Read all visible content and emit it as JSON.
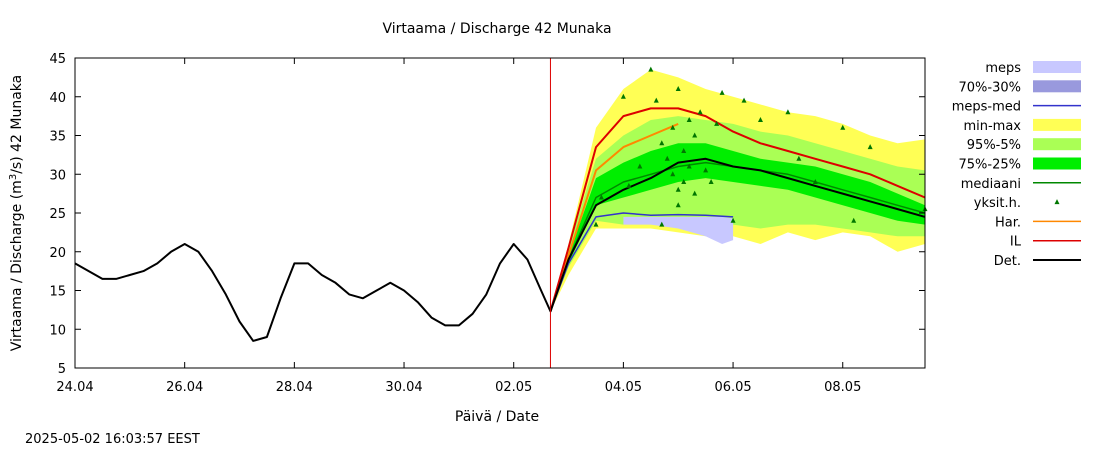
{
  "chart_data": {
    "type": "area",
    "title": "Virtaama / Discharge  42 Munaka",
    "xlabel": "Päivä / Date",
    "ylabel": "Virtaama / Discharge (m³/s)  42 Munaka",
    "ylabel_parts": [
      "Virtaama / Discharge (m",
      "3",
      "/s)  42 Munaka"
    ],
    "footer": "2025-05-02 16:03:57 EEST",
    "x_unit": "days since 24.04 00:00",
    "xlim": [
      0,
      15.5
    ],
    "ylim": [
      5,
      45
    ],
    "grid": false,
    "legend_position": "right",
    "x_ticks": [
      {
        "value": 0,
        "label": "24.04"
      },
      {
        "value": 2,
        "label": "26.04"
      },
      {
        "value": 4,
        "label": "28.04"
      },
      {
        "value": 6,
        "label": "30.04"
      },
      {
        "value": 8,
        "label": "02.05"
      },
      {
        "value": 10,
        "label": "04.05"
      },
      {
        "value": 12,
        "label": "06.05"
      },
      {
        "value": 14,
        "label": "08.05"
      }
    ],
    "y_ticks": [
      5,
      10,
      15,
      20,
      25,
      30,
      35,
      40,
      45
    ],
    "forecast_start": 8.67,
    "legend": [
      {
        "label": "meps",
        "kind": "box",
        "color": "#c8c8ff"
      },
      {
        "label": "70%-30%",
        "kind": "box",
        "color": "#9999dd"
      },
      {
        "label": "meps-med",
        "kind": "line",
        "color": "#3333cc"
      },
      {
        "label": "min-max",
        "kind": "box",
        "color": "#ffff55"
      },
      {
        "label": "95%-5%",
        "kind": "box",
        "color": "#aaff55"
      },
      {
        "label": "75%-25%",
        "kind": "box",
        "color": "#00ee00"
      },
      {
        "label": "mediaani",
        "kind": "line",
        "color": "#008800"
      },
      {
        "label": "yksit.h.",
        "kind": "point",
        "color": "#007700"
      },
      {
        "label": "Har.",
        "kind": "line",
        "color": "#ff8800"
      },
      {
        "label": "IL",
        "kind": "line",
        "color": "#dd0000"
      },
      {
        "label": "Det.",
        "kind": "line",
        "color": "#000000"
      }
    ],
    "bands": [
      {
        "name": "min-max",
        "color": "#ffff55",
        "x": [
          8.67,
          9.0,
          9.5,
          10.0,
          10.5,
          11.0,
          11.5,
          12.0,
          12.5,
          13.0,
          13.5,
          14.0,
          14.5,
          15.0,
          15.5
        ],
        "upper": [
          12.3,
          21.0,
          36.0,
          41.0,
          43.5,
          42.5,
          41.0,
          40.0,
          39.0,
          38.0,
          37.5,
          36.5,
          35.0,
          34.0,
          34.5
        ],
        "lower": [
          12.3,
          17.0,
          23.0,
          23.0,
          23.0,
          22.5,
          22.0,
          22.0,
          21.0,
          22.5,
          21.5,
          22.5,
          22.0,
          20.0,
          21.0
        ]
      },
      {
        "name": "95%-5%",
        "color": "#aaff55",
        "x": [
          8.67,
          9.0,
          9.5,
          10.0,
          10.5,
          11.0,
          11.5,
          12.0,
          12.5,
          13.0,
          13.5,
          14.0,
          14.5,
          15.0,
          15.5
        ],
        "upper": [
          12.3,
          20.5,
          32.0,
          35.0,
          37.0,
          37.5,
          37.0,
          36.5,
          35.5,
          35.0,
          34.0,
          33.0,
          32.0,
          31.0,
          30.5
        ],
        "lower": [
          12.3,
          18.0,
          24.0,
          23.5,
          24.0,
          24.0,
          24.0,
          23.5,
          23.0,
          23.5,
          23.5,
          23.0,
          22.5,
          22.0,
          22.0
        ]
      },
      {
        "name": "75%-25%",
        "color": "#00ee00",
        "x": [
          8.67,
          9.0,
          9.5,
          10.0,
          10.5,
          11.0,
          11.5,
          12.0,
          12.5,
          13.0,
          13.5,
          14.0,
          14.5,
          15.0,
          15.5
        ],
        "upper": [
          12.3,
          19.5,
          29.5,
          31.5,
          33.0,
          34.0,
          34.0,
          33.0,
          32.0,
          31.5,
          31.0,
          30.0,
          29.0,
          27.5,
          26.0
        ],
        "lower": [
          12.3,
          18.5,
          26.0,
          27.0,
          28.0,
          29.0,
          29.5,
          29.0,
          28.5,
          28.0,
          27.0,
          26.0,
          25.0,
          24.0,
          23.5
        ]
      },
      {
        "name": "meps",
        "color": "#c8c8ff",
        "x": [
          10.0,
          10.5,
          11.0,
          11.5,
          11.8,
          12.0
        ],
        "upper": [
          24.5,
          24.5,
          24.5,
          24.5,
          24.5,
          24.3
        ],
        "lower": [
          23.5,
          23.5,
          23.0,
          22.0,
          21.0,
          21.5
        ]
      }
    ],
    "series": [
      {
        "name": "Det.",
        "color": "#000000",
        "width": 2,
        "x": [
          0,
          0.25,
          0.5,
          0.75,
          1.0,
          1.25,
          1.5,
          1.75,
          2.0,
          2.25,
          2.5,
          2.75,
          3.0,
          3.25,
          3.5,
          3.75,
          4.0,
          4.25,
          4.5,
          4.75,
          5.0,
          5.25,
          5.5,
          5.75,
          6.0,
          6.25,
          6.5,
          6.75,
          7.0,
          7.25,
          7.5,
          7.75,
          8.0,
          8.25,
          8.5,
          8.67,
          9.0,
          9.5,
          10.0,
          10.5,
          11.0,
          11.5,
          12.0,
          12.5,
          13.0,
          13.5,
          14.0,
          14.5,
          15.0,
          15.5
        ],
        "y": [
          18.5,
          17.5,
          16.5,
          16.5,
          17.0,
          17.5,
          18.5,
          20.0,
          21.0,
          20.0,
          17.5,
          14.5,
          11.0,
          8.5,
          9.0,
          14.0,
          18.5,
          18.5,
          17.0,
          16.0,
          14.5,
          14.0,
          15.0,
          16.0,
          15.0,
          13.5,
          11.5,
          10.5,
          10.5,
          12.0,
          14.5,
          18.5,
          21.0,
          19.0,
          15.0,
          12.3,
          19.0,
          26.0,
          28.0,
          29.5,
          31.5,
          32.0,
          31.0,
          30.5,
          29.5,
          28.5,
          27.5,
          26.5,
          25.5,
          24.5
        ]
      },
      {
        "name": "IL",
        "color": "#dd0000",
        "width": 2,
        "x": [
          8.67,
          9.0,
          9.5,
          10.0,
          10.5,
          11.0,
          11.5,
          12.0,
          12.5,
          13.0,
          13.5,
          14.0,
          14.5,
          15.0,
          15.5
        ],
        "y": [
          12.3,
          20.5,
          33.5,
          37.5,
          38.5,
          38.5,
          37.5,
          35.5,
          34.0,
          33.0,
          32.0,
          31.0,
          30.0,
          28.5,
          27.0
        ]
      },
      {
        "name": "Har.",
        "color": "#ff8800",
        "width": 2,
        "x": [
          8.67,
          9.0,
          9.5,
          10.0,
          10.5,
          11.0
        ],
        "y": [
          12.3,
          19.5,
          30.5,
          33.5,
          35.0,
          36.5
        ]
      },
      {
        "name": "meps-med",
        "color": "#3333cc",
        "width": 1.5,
        "x": [
          8.67,
          9.0,
          9.5,
          10.0,
          10.5,
          11.0,
          11.5,
          12.0
        ],
        "y": [
          12.3,
          18.5,
          24.5,
          25.0,
          24.7,
          24.8,
          24.7,
          24.5
        ]
      },
      {
        "name": "mediaani",
        "color": "#008800",
        "width": 1.5,
        "x": [
          8.67,
          9.0,
          9.5,
          10.0,
          10.5,
          11.0,
          11.5,
          12.0,
          12.5,
          13.0,
          13.5,
          14.0,
          14.5,
          15.0,
          15.5
        ],
        "y": [
          12.3,
          19.0,
          27.0,
          29.0,
          30.0,
          31.0,
          31.5,
          31.0,
          30.5,
          30.0,
          29.0,
          28.0,
          27.0,
          26.0,
          25.0
        ]
      }
    ],
    "points": {
      "name": "yksit.h.",
      "color": "#007700",
      "x": [
        9.5,
        9.6,
        10.0,
        10.1,
        10.3,
        10.5,
        10.6,
        10.7,
        10.8,
        10.9,
        10.9,
        11.0,
        11.0,
        11.1,
        11.1,
        11.2,
        11.2,
        11.3,
        11.3,
        11.4,
        11.5,
        11.6,
        11.7,
        11.8,
        12.0,
        12.2,
        12.5,
        13.0,
        13.2,
        13.5,
        14.0,
        14.2,
        14.5,
        15.5,
        10.7,
        11.0
      ],
      "y": [
        23.5,
        27.0,
        40.0,
        28.5,
        31.0,
        43.5,
        39.5,
        34.0,
        32.0,
        30.0,
        36.0,
        28.0,
        41.0,
        33.0,
        29.0,
        37.0,
        31.0,
        35.0,
        27.5,
        38.0,
        30.5,
        29.0,
        36.5,
        40.5,
        24.0,
        39.5,
        37.0,
        38.0,
        32.0,
        29.0,
        36.0,
        24.0,
        33.5,
        25.5,
        23.5,
        26.0
      ]
    }
  }
}
